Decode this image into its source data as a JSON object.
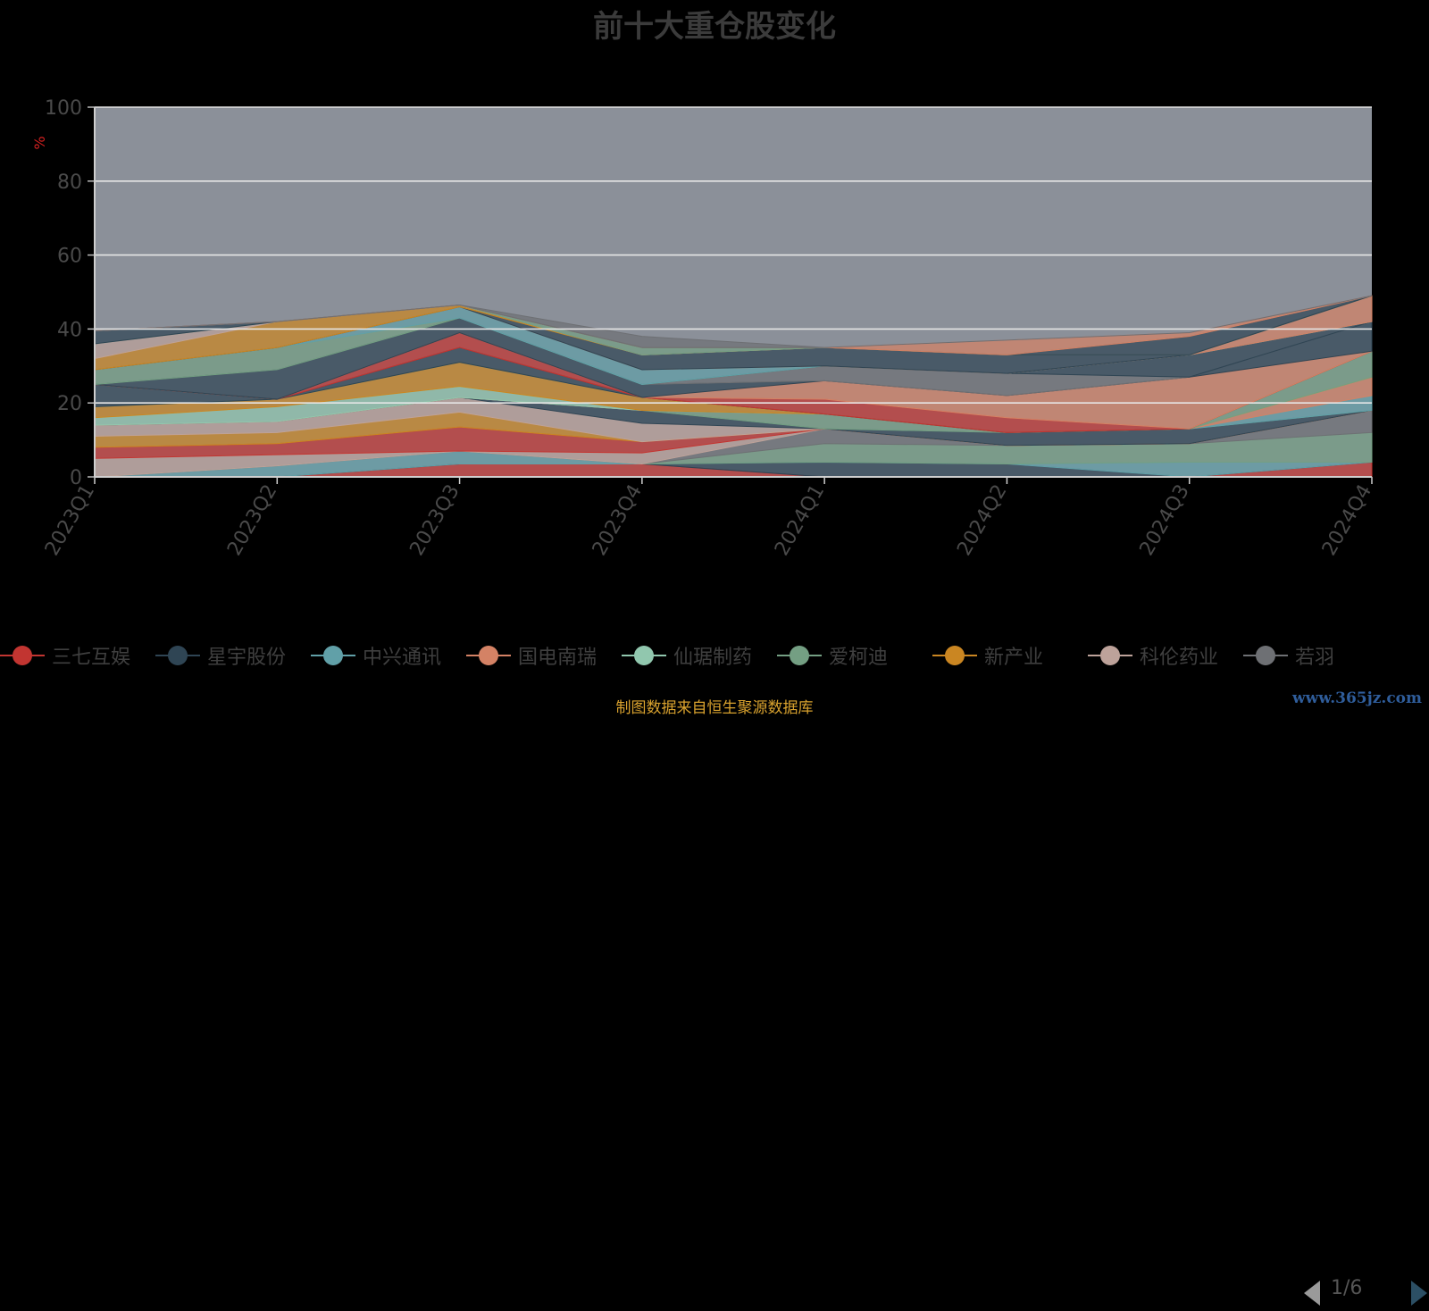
{
  "title": "前十大重仓股变化",
  "ylabel": "%",
  "source_note": "制图数据来自恒生聚源数据库",
  "watermark": "www.365jz.com",
  "legend": {
    "items": [
      {
        "label": "三七互娱",
        "color": "#c23531"
      },
      {
        "label": "星宇股份",
        "color": "#2f4554"
      },
      {
        "label": "中兴通讯",
        "color": "#61a0a8"
      },
      {
        "label": "国电南瑞",
        "color": "#d48265"
      },
      {
        "label": "仙琚制药",
        "color": "#91c7ae"
      },
      {
        "label": "爱柯迪",
        "color": "#749f83"
      },
      {
        "label": "新产业",
        "color": "#ca8622"
      },
      {
        "label": "科伦药业",
        "color": "#bda29a"
      },
      {
        "label": "若羽",
        "color": "#6e7074"
      }
    ],
    "page": "1/6"
  },
  "chart_data": {
    "type": "area",
    "stacked": true,
    "categories": [
      "2023Q1",
      "2023Q2",
      "2023Q3",
      "2023Q4",
      "2024Q1",
      "2024Q2",
      "2024Q3",
      "2024Q4"
    ],
    "ylim": [
      0,
      100
    ],
    "yticks": [
      0,
      20,
      40,
      60,
      80,
      100
    ],
    "plot_background": "#8b9099",
    "grid": true,
    "legend_position": "bottom",
    "series": [
      {
        "name": "",
        "color": "#c23531",
        "values": [
          0,
          0,
          3.5,
          3.5,
          0,
          0,
          0,
          4
        ]
      },
      {
        "name": "",
        "color": "#2f4554",
        "values": [
          0,
          0,
          0,
          0,
          4,
          3.5,
          0,
          0
        ]
      },
      {
        "name": "",
        "color": "#61a0a8",
        "values": [
          0,
          3,
          3.5,
          0,
          0,
          0,
          4,
          0
        ]
      },
      {
        "name": "",
        "color": "#749f83",
        "values": [
          0,
          0,
          0,
          0,
          5,
          5,
          5,
          8
        ]
      },
      {
        "name": "",
        "color": "#6e7074",
        "values": [
          0,
          0,
          0,
          0,
          4,
          0,
          0,
          6
        ]
      },
      {
        "name": "",
        "color": "#bda29a",
        "values": [
          5,
          3,
          0,
          3,
          0,
          0,
          0,
          0
        ]
      },
      {
        "name": "",
        "color": "#c23531",
        "values": [
          3,
          3,
          6.5,
          3,
          0,
          0,
          0,
          0
        ]
      },
      {
        "name": "",
        "color": "#ca8622",
        "values": [
          3,
          3,
          4,
          0,
          0,
          0,
          0,
          0
        ]
      },
      {
        "name": "",
        "color": "#bda29a",
        "values": [
          3,
          3,
          4,
          5,
          0,
          0,
          0,
          0
        ]
      },
      {
        "name": "",
        "color": "#2f4554",
        "values": [
          0,
          0,
          0,
          3.5,
          0,
          3.5,
          4,
          0
        ]
      },
      {
        "name": "",
        "color": "#749f83",
        "values": [
          0,
          0,
          0,
          0,
          4,
          0,
          0,
          0
        ]
      },
      {
        "name": "",
        "color": "#61a0a8",
        "values": [
          0,
          0,
          0,
          0,
          0,
          0,
          0,
          4
        ]
      },
      {
        "name": "",
        "color": "#d48265",
        "values": [
          0,
          0,
          0,
          0,
          0,
          0,
          0,
          5
        ]
      },
      {
        "name": "",
        "color": "#91c7ae",
        "values": [
          2,
          4,
          3,
          0,
          0,
          0,
          0,
          0
        ]
      },
      {
        "name": "",
        "color": "#ca8622",
        "values": [
          3,
          2,
          6.5,
          3.5,
          0,
          0,
          0,
          0
        ]
      },
      {
        "name": "",
        "color": "#749f83",
        "values": [
          0,
          0,
          0,
          0,
          0,
          0,
          0,
          7
        ]
      },
      {
        "name": "",
        "color": "#2f4554",
        "values": [
          6,
          0,
          4,
          0,
          0,
          0,
          0,
          0
        ]
      },
      {
        "name": "",
        "color": "#c23531",
        "values": [
          0,
          0,
          4,
          0,
          4,
          4,
          0,
          0
        ]
      },
      {
        "name": "",
        "color": "#d48265",
        "values": [
          0,
          0,
          0,
          0,
          5,
          6,
          14,
          0
        ]
      },
      {
        "name": "",
        "color": "#2f4554",
        "values": [
          0,
          8,
          4,
          3.5,
          0,
          0,
          0,
          8
        ]
      },
      {
        "name": "",
        "color": "#6e7074",
        "values": [
          0,
          0,
          0,
          0,
          4,
          6,
          0,
          0
        ]
      },
      {
        "name": "",
        "color": "#2f4554",
        "values": [
          0,
          0,
          0,
          0,
          0,
          0,
          6,
          0
        ]
      },
      {
        "name": "",
        "color": "#749f83",
        "values": [
          4,
          6,
          0,
          0,
          0,
          0,
          0,
          0
        ]
      },
      {
        "name": "",
        "color": "#61a0a8",
        "values": [
          0,
          0,
          3,
          4,
          0,
          0,
          0,
          0
        ]
      },
      {
        "name": "",
        "color": "#d48265",
        "values": [
          0,
          0,
          0,
          0,
          0,
          0,
          0,
          7
        ]
      },
      {
        "name": "",
        "color": "#2f4554",
        "values": [
          0,
          0,
          0,
          4,
          5,
          5,
          0,
          0
        ]
      },
      {
        "name": "",
        "color": "#ca8622",
        "values": [
          3,
          7,
          0.5,
          0,
          0,
          0,
          0,
          0
        ]
      },
      {
        "name": "",
        "color": "#bda29a",
        "values": [
          4,
          0,
          0,
          0,
          0,
          0,
          0,
          0
        ]
      },
      {
        "name": "",
        "color": "#749f83",
        "values": [
          0,
          0,
          0,
          2,
          0,
          0,
          0,
          0
        ]
      },
      {
        "name": "",
        "color": "#2f4554",
        "values": [
          3.5,
          0,
          0,
          0,
          0,
          0,
          5,
          0
        ]
      },
      {
        "name": "",
        "color": "#d48265",
        "values": [
          0,
          0,
          0,
          0,
          0,
          4,
          1,
          0
        ]
      },
      {
        "name": "",
        "color": "#6e7074",
        "values": [
          0,
          0,
          0,
          3,
          0,
          0,
          0,
          0
        ]
      }
    ]
  }
}
